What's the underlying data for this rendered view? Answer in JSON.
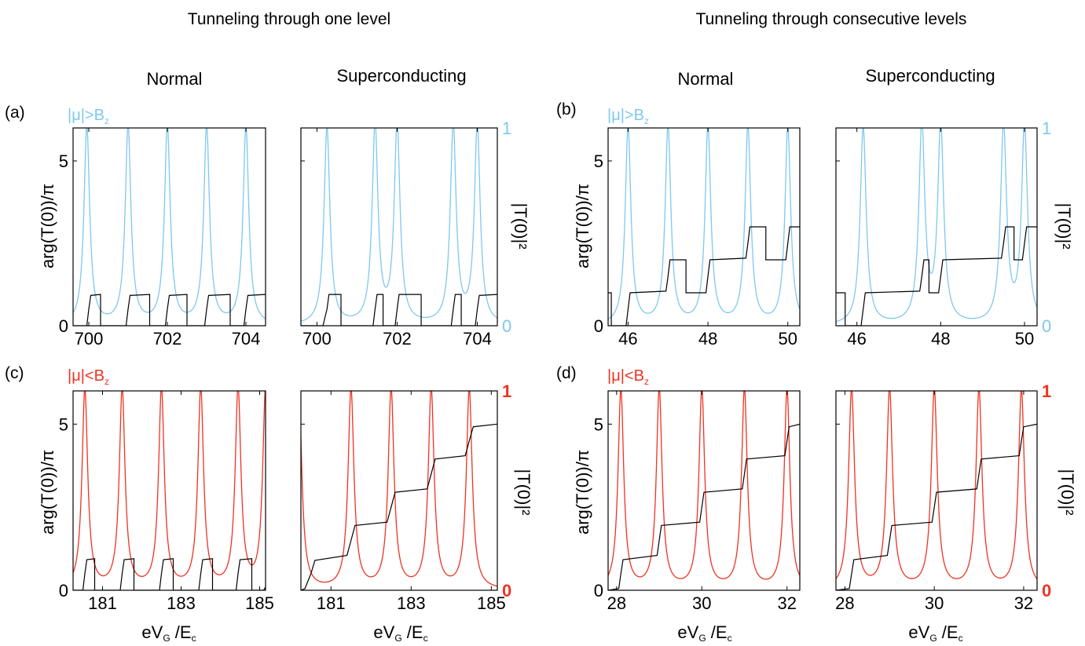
{
  "headers": {
    "left": "Tunneling through one level",
    "right": "Tunneling through consecutive levels",
    "normal": "Normal",
    "superconducting": "Superconducting"
  },
  "labels": {
    "phase_axis": "arg(T(0))/π",
    "transmission_axis": "|T(0)|²",
    "x_axis_main": "eV",
    "x_axis_sub": "G",
    "x_axis_rest": " /E",
    "x_axis_sub2": "c",
    "cond_blue": "|μ|>B",
    "cond_red": "|μ|<B",
    "cond_sub": "z"
  },
  "colors": {
    "phase": "#000000",
    "transmission_blue": "#7ec8ee",
    "transmission_red": "#ee3322"
  },
  "panels": [
    {
      "label": "(a)",
      "condition": "blue"
    },
    {
      "label": "(b)",
      "condition": "blue"
    },
    {
      "label": "(c)",
      "condition": "red"
    },
    {
      "label": "(d)",
      "condition": "red"
    }
  ],
  "chart_data": [
    {
      "type": "line",
      "panel": "(a)",
      "column": "Normal",
      "xlim": [
        699.6,
        704.5
      ],
      "ylim": [
        0,
        6
      ],
      "xticks": [
        700,
        702,
        704
      ],
      "yticks": [
        0,
        5
      ],
      "y2ticks": [
        0,
        1
      ],
      "y2lim": [
        0,
        1
      ],
      "series": [
        {
          "values_type": "phase",
          "x": [
            699.6,
            699.95,
            700.0,
            700.05,
            700.3,
            700.3,
            700.95,
            701.0,
            701.05,
            701.55,
            701.55,
            701.95,
            702.0,
            702.05,
            702.5,
            702.5,
            702.95,
            703.0,
            703.05,
            703.6,
            703.6,
            703.95,
            704.0,
            704.05,
            704.5
          ],
          "y": [
            0,
            0,
            0.5,
            0.92,
            0.95,
            0,
            0,
            0.5,
            0.92,
            0.95,
            0,
            0,
            0.5,
            0.92,
            0.95,
            0,
            0,
            0.5,
            0.92,
            0.95,
            0,
            0,
            0.5,
            0.92,
            0.95
          ]
        },
        {
          "values_type": "transmission",
          "peaks": [
            699.95,
            701.0,
            702.0,
            703.0,
            704.0
          ]
        }
      ]
    },
    {
      "type": "line",
      "panel": "(a)",
      "column": "Superconducting",
      "xlim": [
        699.6,
        704.5
      ],
      "ylim": [
        0,
        6
      ],
      "xticks": [
        700,
        702,
        704
      ],
      "yticks": [
        0,
        5
      ],
      "y2ticks": [
        0,
        1
      ],
      "y2lim": [
        0,
        1
      ],
      "series": [
        {
          "values_type": "phase",
          "x": [
            699.6,
            700.15,
            700.25,
            700.3,
            700.6,
            700.6,
            701.4,
            701.45,
            701.5,
            701.65,
            701.65,
            701.95,
            702.0,
            702.05,
            702.6,
            702.6,
            703.35,
            703.4,
            703.45,
            703.6,
            703.6,
            703.95,
            704.0,
            704.05,
            704.5
          ],
          "y": [
            0,
            0,
            0.5,
            0.95,
            0.95,
            0,
            0,
            0.5,
            0.95,
            0.95,
            0,
            0,
            0.5,
            0.95,
            0.95,
            0,
            0,
            0.5,
            0.95,
            0.95,
            0,
            0,
            0.5,
            0.92,
            0.95
          ]
        },
        {
          "values_type": "transmission",
          "peaks": [
            700.25,
            701.45,
            702.0,
            703.4,
            704.0
          ]
        }
      ]
    },
    {
      "type": "line",
      "panel": "(b)",
      "column": "Normal",
      "xlim": [
        45.5,
        50.3
      ],
      "ylim": [
        0,
        6
      ],
      "xticks": [
        46,
        48,
        50
      ],
      "yticks": [
        0,
        5
      ],
      "y2ticks": [
        0,
        1
      ],
      "y2lim": [
        0,
        1
      ],
      "series": [
        {
          "values_type": "phase",
          "x": [
            45.5,
            45.58,
            45.58,
            45.95,
            46.0,
            46.05,
            46.95,
            47.0,
            47.05,
            47.45,
            47.45,
            47.95,
            48.0,
            48.05,
            48.95,
            49.0,
            49.05,
            49.45,
            49.45,
            49.95,
            50.0,
            50.05,
            50.3
          ],
          "y": [
            1,
            1,
            0,
            0,
            0.5,
            1.0,
            1.05,
            1.5,
            2.0,
            2.0,
            1.0,
            1.0,
            1.5,
            2.0,
            2.05,
            2.5,
            3.0,
            3.0,
            2.0,
            2.0,
            2.5,
            3.0,
            3.0
          ]
        },
        {
          "values_type": "transmission",
          "peaks": [
            46.0,
            47.0,
            48.0,
            49.0,
            50.0
          ]
        }
      ]
    },
    {
      "type": "line",
      "panel": "(b)",
      "column": "Superconducting",
      "xlim": [
        45.5,
        50.3
      ],
      "ylim": [
        0,
        6
      ],
      "xticks": [
        46,
        48,
        50
      ],
      "yticks": [
        0,
        5
      ],
      "y2ticks": [
        0,
        1
      ],
      "y2lim": [
        0,
        1
      ],
      "series": [
        {
          "values_type": "phase",
          "x": [
            45.5,
            45.72,
            45.72,
            46.1,
            46.15,
            46.2,
            47.5,
            47.55,
            47.6,
            47.72,
            47.72,
            47.95,
            48.0,
            48.05,
            49.45,
            49.5,
            49.55,
            49.75,
            49.75,
            49.95,
            50.0,
            50.05,
            50.3
          ],
          "y": [
            1,
            1,
            0,
            0,
            0.5,
            1.0,
            1.05,
            1.5,
            2.0,
            2.0,
            1.0,
            1.0,
            1.5,
            2.0,
            2.05,
            2.5,
            3.0,
            3.0,
            2.0,
            2.0,
            2.5,
            3.0,
            3.0
          ]
        },
        {
          "values_type": "transmission",
          "peaks": [
            46.15,
            47.55,
            48.0,
            49.5,
            50.0
          ]
        }
      ]
    },
    {
      "type": "line",
      "panel": "(c)",
      "column": "Normal",
      "xlim": [
        180.25,
        185.15
      ],
      "ylim": [
        0,
        6
      ],
      "xticks": [
        181,
        183,
        185
      ],
      "yticks": [
        0,
        5
      ],
      "y2ticks": [
        0,
        1
      ],
      "y2lim": [
        0,
        1
      ],
      "series": [
        {
          "values_type": "phase",
          "x": [
            180.25,
            180.5,
            180.55,
            180.6,
            180.8,
            180.8,
            181.45,
            181.5,
            181.55,
            181.8,
            181.8,
            182.45,
            182.5,
            182.55,
            182.8,
            182.8,
            183.45,
            183.5,
            183.55,
            183.8,
            183.8,
            184.4,
            184.45,
            184.5,
            184.8,
            184.8,
            185.1,
            185.15
          ],
          "y": [
            0,
            0,
            0.5,
            0.92,
            0.95,
            0,
            0,
            0.5,
            0.92,
            0.95,
            0,
            0,
            0.5,
            0.92,
            0.95,
            0,
            0,
            0.5,
            0.92,
            0.95,
            0,
            0,
            0.5,
            0.92,
            0.95,
            0,
            0,
            0.1
          ]
        },
        {
          "values_type": "transmission",
          "peaks": [
            180.55,
            181.5,
            182.5,
            183.5,
            184.45,
            185.15
          ]
        }
      ]
    },
    {
      "type": "line",
      "panel": "(c)",
      "column": "Superconducting",
      "xlim": [
        180.25,
        185.15
      ],
      "ylim": [
        0,
        6
      ],
      "xticks": [
        181,
        183,
        185
      ],
      "yticks": [
        0,
        5
      ],
      "y2ticks": [
        0,
        1
      ],
      "y2lim": [
        0,
        1
      ],
      "series": [
        {
          "values_type": "phase",
          "x": [
            180.25,
            180.35,
            180.5,
            180.6,
            181.4,
            181.5,
            181.6,
            182.4,
            182.5,
            182.6,
            183.4,
            183.5,
            183.6,
            184.35,
            184.45,
            184.55,
            185.15
          ],
          "y": [
            0,
            0.05,
            0.5,
            0.9,
            1.05,
            1.5,
            1.95,
            2.05,
            2.5,
            2.95,
            3.05,
            3.5,
            3.95,
            4.05,
            4.5,
            4.92,
            5.0
          ]
        },
        {
          "values_type": "transmission",
          "peaks": [
            180.2,
            181.5,
            182.5,
            183.5,
            184.45
          ]
        }
      ]
    },
    {
      "type": "line",
      "panel": "(d)",
      "column": "Normal",
      "xlim": [
        27.8,
        32.3
      ],
      "ylim": [
        0,
        6
      ],
      "xticks": [
        28,
        30,
        32
      ],
      "yticks": [
        0,
        5
      ],
      "y2ticks": [
        0,
        1
      ],
      "y2lim": [
        0,
        1
      ],
      "series": [
        {
          "values_type": "phase",
          "x": [
            27.8,
            28.05,
            28.1,
            28.15,
            28.95,
            29.0,
            29.05,
            29.95,
            30.0,
            30.05,
            30.95,
            31.0,
            31.05,
            31.95,
            32.0,
            32.05,
            32.3
          ],
          "y": [
            0,
            0.05,
            0.5,
            0.92,
            1.05,
            1.5,
            1.95,
            2.05,
            2.5,
            2.95,
            3.05,
            3.5,
            3.95,
            4.05,
            4.5,
            4.92,
            5.0
          ]
        },
        {
          "values_type": "transmission",
          "peaks": [
            28.1,
            29.0,
            30.0,
            31.0,
            32.0
          ]
        }
      ]
    },
    {
      "type": "line",
      "panel": "(d)",
      "column": "Superconducting",
      "xlim": [
        27.8,
        32.3
      ],
      "ylim": [
        0,
        6
      ],
      "xticks": [
        28,
        30,
        32
      ],
      "yticks": [
        0,
        5
      ],
      "y2ticks": [
        0,
        1
      ],
      "y2lim": [
        0,
        1
      ],
      "series": [
        {
          "values_type": "phase",
          "x": [
            27.8,
            28.1,
            28.15,
            28.2,
            28.95,
            29.0,
            29.05,
            29.95,
            30.0,
            30.05,
            30.95,
            31.0,
            31.05,
            31.9,
            31.95,
            32.0,
            32.3
          ],
          "y": [
            0,
            0.05,
            0.5,
            0.92,
            1.05,
            1.5,
            1.95,
            2.05,
            2.5,
            2.95,
            3.05,
            3.5,
            3.95,
            4.05,
            4.5,
            4.92,
            5.0
          ]
        },
        {
          "values_type": "transmission",
          "peaks": [
            28.15,
            29.0,
            30.0,
            31.0,
            31.95
          ]
        }
      ]
    }
  ]
}
